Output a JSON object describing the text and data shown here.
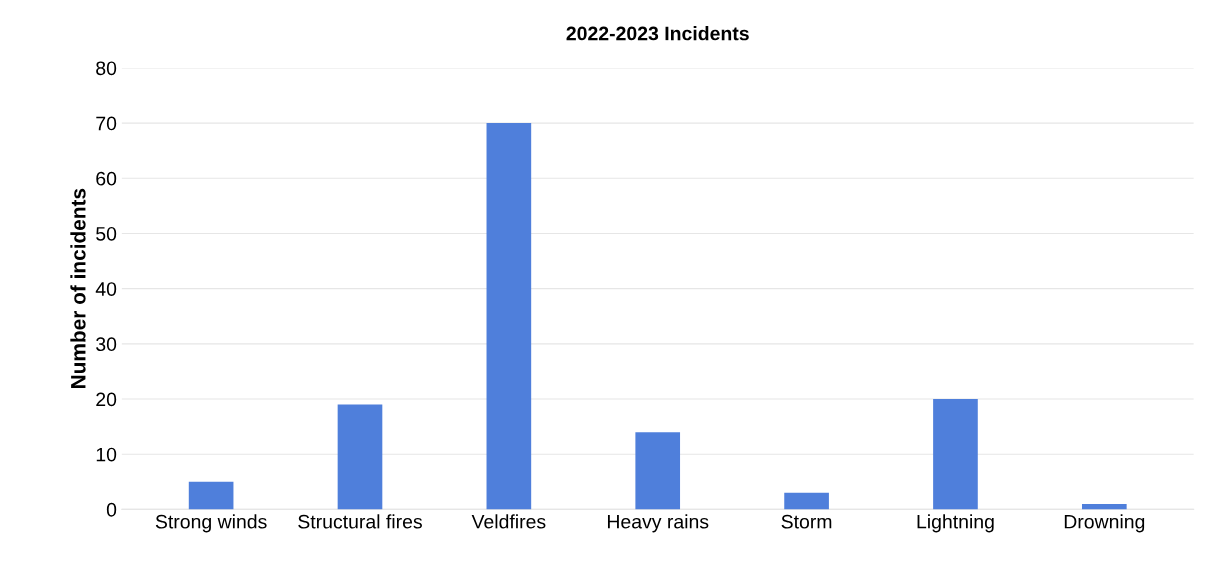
{
  "chart_data": {
    "type": "bar",
    "title": "2022-2023 Incidents",
    "ylabel": "Number of incidents",
    "categories": [
      "Strong winds",
      "Structural fires",
      "Veldfires",
      "Heavy rains",
      "Storm",
      "Lightning",
      "Drowning"
    ],
    "values": [
      5,
      19,
      70,
      14,
      3,
      20,
      1
    ],
    "color": "#4f7fdb",
    "ylim": [
      0,
      80
    ],
    "yticks": [
      0,
      10,
      20,
      30,
      40,
      50,
      60,
      70,
      80
    ],
    "grid": "y"
  }
}
